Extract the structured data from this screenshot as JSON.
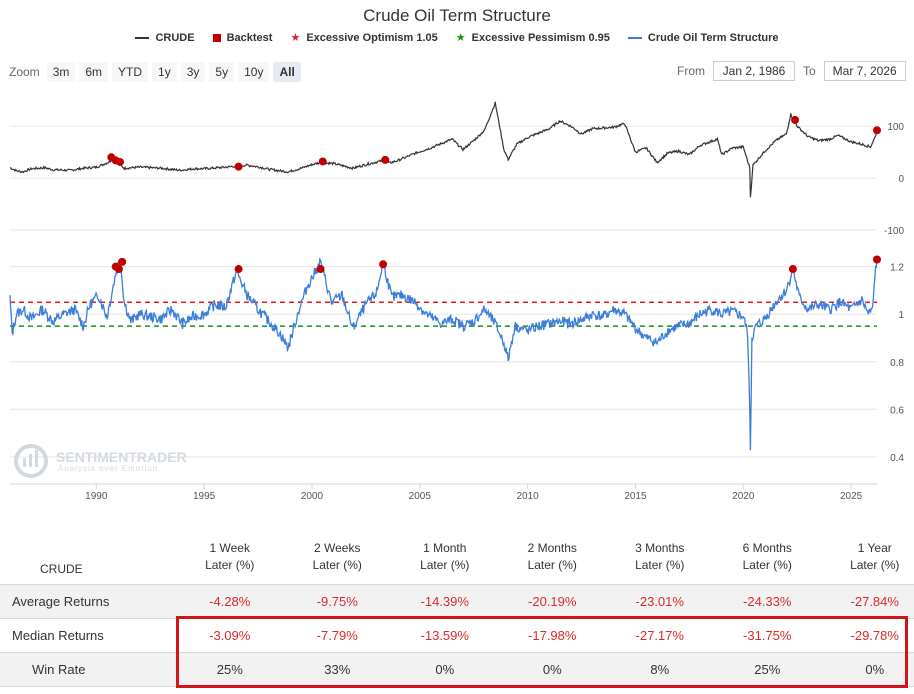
{
  "chart_data": {
    "type": "line",
    "title": "Crude Oil Term Structure",
    "legend": [
      {
        "name": "CRUDE",
        "color": "#333333",
        "symbol": "line"
      },
      {
        "name": "Backtest",
        "color": "#c00000",
        "symbol": "square"
      },
      {
        "name": "Excessive Optimism 1.05",
        "color": "#e02020",
        "symbol": "star"
      },
      {
        "name": "Excessive Pessimism 0.95",
        "color": "#1a8f1a",
        "symbol": "star"
      },
      {
        "name": "Crude Oil Term Structure",
        "color": "#3b7dd8",
        "symbol": "line"
      }
    ],
    "xlim": [
      1986.0,
      2026.2
    ],
    "x_ticks": [
      "1990",
      "1995",
      "2000",
      "2005",
      "2010",
      "2015",
      "2020",
      "2025"
    ],
    "upper_panel": {
      "series": "CRUDE",
      "ylim": [
        -100,
        160
      ],
      "y_ticks": [
        "100",
        "0",
        "-100"
      ],
      "points": [
        [
          1986.0,
          20
        ],
        [
          1986.3,
          14
        ],
        [
          1986.6,
          12
        ],
        [
          1987.0,
          18
        ],
        [
          1987.6,
          20
        ],
        [
          1988.0,
          16
        ],
        [
          1988.8,
          15
        ],
        [
          1989.4,
          19
        ],
        [
          1990.0,
          21
        ],
        [
          1990.6,
          31
        ],
        [
          1990.8,
          40
        ],
        [
          1991.0,
          28
        ],
        [
          1991.3,
          19
        ],
        [
          1992.0,
          21
        ],
        [
          1993.0,
          19
        ],
        [
          1993.9,
          15
        ],
        [
          1994.5,
          18
        ],
        [
          1995.0,
          18
        ],
        [
          1996.0,
          21
        ],
        [
          1996.5,
          23
        ],
        [
          1997.0,
          25
        ],
        [
          1997.6,
          21
        ],
        [
          1998.0,
          17
        ],
        [
          1998.9,
          12
        ],
        [
          1999.5,
          19
        ],
        [
          2000.0,
          26
        ],
        [
          2000.4,
          30
        ],
        [
          2001.0,
          28
        ],
        [
          2001.9,
          19
        ],
        [
          2002.5,
          26
        ],
        [
          2003.0,
          31
        ],
        [
          2003.3,
          34
        ],
        [
          2003.6,
          29
        ],
        [
          2004.0,
          34
        ],
        [
          2004.8,
          48
        ],
        [
          2005.5,
          58
        ],
        [
          2006.5,
          75
        ],
        [
          2007.0,
          55
        ],
        [
          2007.5,
          72
        ],
        [
          2008.0,
          92
        ],
        [
          2008.5,
          145
        ],
        [
          2008.9,
          55
        ],
        [
          2009.1,
          36
        ],
        [
          2009.5,
          65
        ],
        [
          2010.0,
          78
        ],
        [
          2011.0,
          95
        ],
        [
          2011.5,
          110
        ],
        [
          2012.0,
          100
        ],
        [
          2012.5,
          85
        ],
        [
          2013.0,
          95
        ],
        [
          2014.0,
          98
        ],
        [
          2014.5,
          105
        ],
        [
          2015.0,
          50
        ],
        [
          2015.5,
          58
        ],
        [
          2016.0,
          30
        ],
        [
          2016.5,
          48
        ],
        [
          2017.0,
          52
        ],
        [
          2017.5,
          45
        ],
        [
          2018.0,
          63
        ],
        [
          2018.8,
          75
        ],
        [
          2019.0,
          45
        ],
        [
          2019.5,
          58
        ],
        [
          2020.0,
          60
        ],
        [
          2020.3,
          20
        ],
        [
          2020.33,
          -37
        ],
        [
          2020.45,
          25
        ],
        [
          2021.0,
          52
        ],
        [
          2021.5,
          72
        ],
        [
          2022.0,
          85
        ],
        [
          2022.2,
          123
        ],
        [
          2022.5,
          100
        ],
        [
          2023.0,
          80
        ],
        [
          2023.5,
          72
        ],
        [
          2024.0,
          75
        ],
        [
          2024.4,
          82
        ],
        [
          2025.0,
          70
        ],
        [
          2025.5,
          65
        ],
        [
          2025.9,
          60
        ],
        [
          2026.1,
          78
        ],
        [
          2026.2,
          92
        ]
      ],
      "backtest_signals": [
        [
          1990.7,
          40
        ],
        [
          1990.9,
          34
        ],
        [
          1991.1,
          31
        ],
        [
          1996.6,
          22
        ],
        [
          2000.5,
          32
        ],
        [
          2003.4,
          35
        ],
        [
          2022.4,
          112
        ],
        [
          2026.2,
          92
        ]
      ]
    },
    "lower_panel": {
      "series": "Crude Oil Term Structure",
      "ylim": [
        0.37,
        1.27
      ],
      "y_ticks": [
        "1.2",
        "1",
        "0.8",
        "0.6",
        "0.4"
      ],
      "thresholds": {
        "optimism": 1.05,
        "pessimism": 0.95
      },
      "points": [
        [
          1986.0,
          1.07
        ],
        [
          1986.1,
          0.92
        ],
        [
          1986.3,
          1.0
        ],
        [
          1986.6,
          1.02
        ],
        [
          1987.0,
          0.98
        ],
        [
          1987.5,
          1.02
        ],
        [
          1988.0,
          0.97
        ],
        [
          1988.5,
          1.0
        ],
        [
          1989.0,
          1.02
        ],
        [
          1989.4,
          0.95
        ],
        [
          1989.7,
          1.04
        ],
        [
          1990.1,
          1.08
        ],
        [
          1990.5,
          0.99
        ],
        [
          1990.9,
          1.17
        ],
        [
          1991.1,
          1.24
        ],
        [
          1991.3,
          1.05
        ],
        [
          1991.6,
          0.97
        ],
        [
          1992.0,
          1.0
        ],
        [
          1993.0,
          0.98
        ],
        [
          1993.5,
          1.02
        ],
        [
          1994.0,
          0.96
        ],
        [
          1994.5,
          0.99
        ],
        [
          1995.0,
          1.0
        ],
        [
          1995.5,
          1.04
        ],
        [
          1996.0,
          1.03
        ],
        [
          1996.5,
          1.18
        ],
        [
          1996.8,
          1.12
        ],
        [
          1997.0,
          1.08
        ],
        [
          1997.5,
          1.02
        ],
        [
          1998.0,
          0.97
        ],
        [
          1998.5,
          0.92
        ],
        [
          1998.9,
          0.86
        ],
        [
          1999.4,
          1.02
        ],
        [
          1999.8,
          1.12
        ],
        [
          2000.4,
          1.22
        ],
        [
          2000.9,
          1.05
        ],
        [
          2001.4,
          1.08
        ],
        [
          2001.9,
          0.94
        ],
        [
          2002.5,
          1.04
        ],
        [
          2003.0,
          1.09
        ],
        [
          2003.3,
          1.22
        ],
        [
          2003.7,
          1.07
        ],
        [
          2004.2,
          1.08
        ],
        [
          2004.8,
          1.05
        ],
        [
          2005.3,
          1.0
        ],
        [
          2006.0,
          0.96
        ],
        [
          2006.5,
          0.98
        ],
        [
          2007.0,
          0.95
        ],
        [
          2007.5,
          0.97
        ],
        [
          2008.0,
          1.02
        ],
        [
          2008.5,
          0.96
        ],
        [
          2008.9,
          0.88
        ],
        [
          2009.1,
          0.81
        ],
        [
          2009.4,
          0.95
        ],
        [
          2010.0,
          0.93
        ],
        [
          2010.5,
          0.95
        ],
        [
          2011.0,
          0.96
        ],
        [
          2011.5,
          0.97
        ],
        [
          2012.0,
          0.96
        ],
        [
          2012.6,
          0.98
        ],
        [
          2013.0,
          1.0
        ],
        [
          2013.5,
          0.99
        ],
        [
          2014.0,
          1.02
        ],
        [
          2014.5,
          1.0
        ],
        [
          2015.0,
          0.94
        ],
        [
          2015.5,
          0.9
        ],
        [
          2016.0,
          0.88
        ],
        [
          2016.5,
          0.93
        ],
        [
          2017.0,
          0.95
        ],
        [
          2017.5,
          0.96
        ],
        [
          2018.0,
          1.0
        ],
        [
          2018.5,
          1.02
        ],
        [
          2019.0,
          1.0
        ],
        [
          2019.5,
          1.01
        ],
        [
          2020.0,
          0.99
        ],
        [
          2020.2,
          0.92
        ],
        [
          2020.3,
          0.6
        ],
        [
          2020.33,
          0.44
        ],
        [
          2020.4,
          0.9
        ],
        [
          2020.6,
          0.95
        ],
        [
          2021.0,
          0.98
        ],
        [
          2021.5,
          1.05
        ],
        [
          2022.0,
          1.1
        ],
        [
          2022.3,
          1.19
        ],
        [
          2022.6,
          1.07
        ],
        [
          2023.0,
          1.02
        ],
        [
          2023.5,
          1.04
        ],
        [
          2024.0,
          1.02
        ],
        [
          2024.5,
          1.05
        ],
        [
          2025.0,
          1.02
        ],
        [
          2025.5,
          1.06
        ],
        [
          2025.8,
          1.0
        ],
        [
          2026.0,
          1.02
        ],
        [
          2026.1,
          1.16
        ],
        [
          2026.2,
          1.24
        ]
      ],
      "backtest_signals": [
        [
          1990.9,
          1.2
        ],
        [
          1991.05,
          1.19
        ],
        [
          1991.2,
          1.22
        ],
        [
          1996.6,
          1.19
        ],
        [
          2000.4,
          1.19
        ],
        [
          2003.3,
          1.21
        ],
        [
          2022.3,
          1.19
        ],
        [
          2026.2,
          1.23
        ]
      ]
    }
  },
  "controls": {
    "zoom_label": "Zoom",
    "zoom_buttons": [
      "3m",
      "6m",
      "YTD",
      "1y",
      "3y",
      "5y",
      "10y",
      "All"
    ],
    "active_zoom": "All",
    "from_label": "From",
    "from_value": "Jan 2, 1986",
    "to_label": "To",
    "to_value": "Mar 7, 2026"
  },
  "watermark": {
    "name": "SENTIMENTRADER",
    "tagline": "Analysis over Emotion"
  },
  "stats_table": {
    "corner_label": "CRUDE",
    "headers": [
      [
        "1 Week",
        "Later (%)"
      ],
      [
        "2 Weeks",
        "Later (%)"
      ],
      [
        "1 Month",
        "Later (%)"
      ],
      [
        "2 Months",
        "Later (%)"
      ],
      [
        "3 Months",
        "Later (%)"
      ],
      [
        "6 Months",
        "Later (%)"
      ],
      [
        "1 Year",
        "Later (%)"
      ]
    ],
    "rows": [
      {
        "label": "Average Returns",
        "values": [
          "-4.28%",
          "-9.75%",
          "-14.39%",
          "-20.19%",
          "-23.01%",
          "-24.33%",
          "-27.84%"
        ],
        "tone": "neg"
      },
      {
        "label": "Median Returns",
        "values": [
          "-3.09%",
          "-7.79%",
          "-13.59%",
          "-17.98%",
          "-27.17%",
          "-31.75%",
          "-29.78%"
        ],
        "tone": "neg"
      },
      {
        "label": "Win Rate",
        "values": [
          "25%",
          "33%",
          "0%",
          "0%",
          "8%",
          "25%",
          "0%"
        ],
        "tone": "pos"
      }
    ],
    "highlight_color": "#d0151b"
  }
}
